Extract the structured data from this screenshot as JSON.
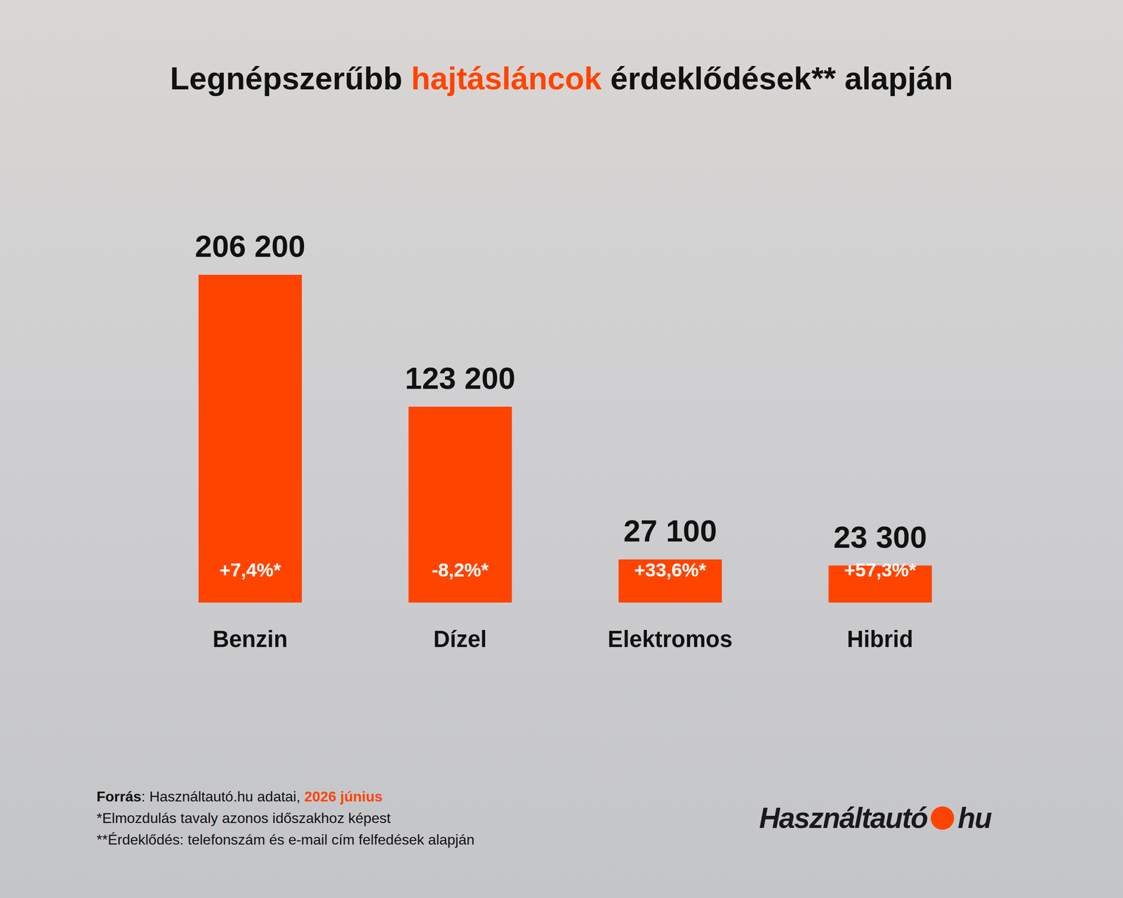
{
  "chart_data": {
    "type": "bar",
    "title": "Legnépszerűbb hajtásláncok érdeklődések** alapján",
    "title_highlight": "hajtásláncok",
    "categories": [
      "Benzin",
      "Dízel",
      "Elektromos",
      "Hibrid"
    ],
    "values": [
      206200,
      123200,
      27100,
      23300
    ],
    "value_labels": [
      "206 200",
      "123 200",
      "27 100",
      "23 300"
    ],
    "changes": [
      7.4,
      -8.2,
      33.6,
      57.3
    ],
    "change_labels": [
      "+7,4%*",
      "-8,2%*",
      "+33,6%*",
      "+57,3%*"
    ],
    "color": "#ff4400",
    "ylim": [
      0,
      206200
    ],
    "data_labels": true,
    "tick_labels": "x",
    "grid": false,
    "source_label": "Forrás",
    "source_text": "Használtautó.hu adatai,",
    "source_date": "2026 június",
    "footnotes": [
      "*Elmozdulás tavaly azonos időszakhoz képest",
      "**Érdeklődés: telefonszám és e-mail cím felfedések alapján"
    ],
    "logo": {
      "left": "Használtautó",
      "right": "hu"
    }
  }
}
